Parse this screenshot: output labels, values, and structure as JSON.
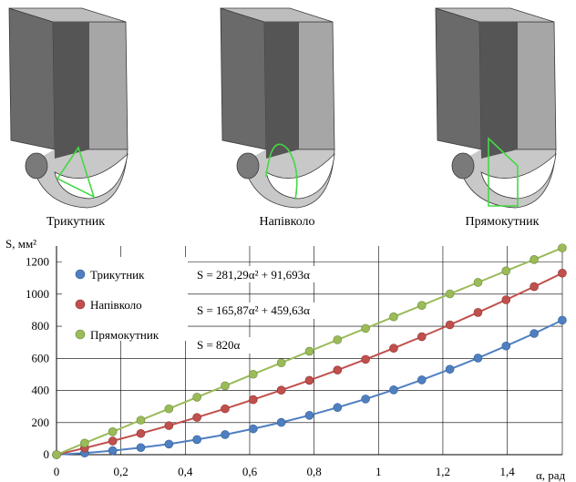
{
  "shapes": [
    {
      "label": "Трикутник",
      "cutout": "triangle"
    },
    {
      "label": "Напівколо",
      "cutout": "semicircle"
    },
    {
      "label": "Прямокутник",
      "cutout": "rectangle"
    }
  ],
  "colors": {
    "wall_dark": "#555555",
    "wall_light": "#a6a6a6",
    "rim": "#c8c8c8",
    "outline": "#3a3a3a",
    "cutout": "#44d944",
    "triangle": "#4f7fc1",
    "semicircle": "#c0504d",
    "rectangle": "#9bbb59",
    "grid": "#000000"
  },
  "chart_data": {
    "type": "scatter",
    "ylabel": "S, мм²",
    "xlabel": "α, рад",
    "xlim": [
      0,
      1.571
    ],
    "ylim": [
      0,
      1300
    ],
    "xticks": [
      0,
      0.2,
      0.4,
      0.6,
      0.8,
      1,
      1.2,
      1.4
    ],
    "xtick_labels": [
      "0",
      "0,2",
      "0,4",
      "0,6",
      "0,8",
      "1",
      "1,2",
      "1,4"
    ],
    "yticks": [
      0,
      200,
      400,
      600,
      800,
      1000,
      1200
    ],
    "ytick_labels": [
      "0",
      "200",
      "400",
      "600",
      "800",
      "1000",
      "1200"
    ],
    "grid": true,
    "legend_placement": "top-left",
    "x": [
      0,
      0.0873,
      0.1745,
      0.2618,
      0.3491,
      0.4363,
      0.5236,
      0.6109,
      0.6981,
      0.7854,
      0.8727,
      0.9599,
      1.0472,
      1.1345,
      1.2217,
      1.309,
      1.3963,
      1.4835,
      1.5708
    ],
    "series": [
      {
        "name": "Трикутник",
        "equation": "S = 281,29α² + 91,693α",
        "color": "#4f7fc1",
        "values": [
          0,
          10,
          25,
          44,
          66,
          94,
          125,
          161,
          201,
          245,
          294,
          347,
          404,
          466,
          532,
          602,
          677,
          755,
          838
        ]
      },
      {
        "name": "Напівколо",
        "equation": "S = 165,87α² + 459,63α",
        "color": "#c0504d",
        "values": [
          0,
          41,
          85,
          132,
          181,
          232,
          286,
          343,
          402,
          463,
          527,
          594,
          663,
          735,
          809,
          886,
          965,
          1047,
          1131
        ]
      },
      {
        "name": "Прямокутник",
        "equation": "S = 820α",
        "color": "#9bbb59",
        "values": [
          0,
          72,
          143,
          215,
          286,
          358,
          429,
          501,
          572,
          644,
          716,
          787,
          859,
          930,
          1002,
          1073,
          1145,
          1216,
          1288
        ]
      }
    ]
  }
}
